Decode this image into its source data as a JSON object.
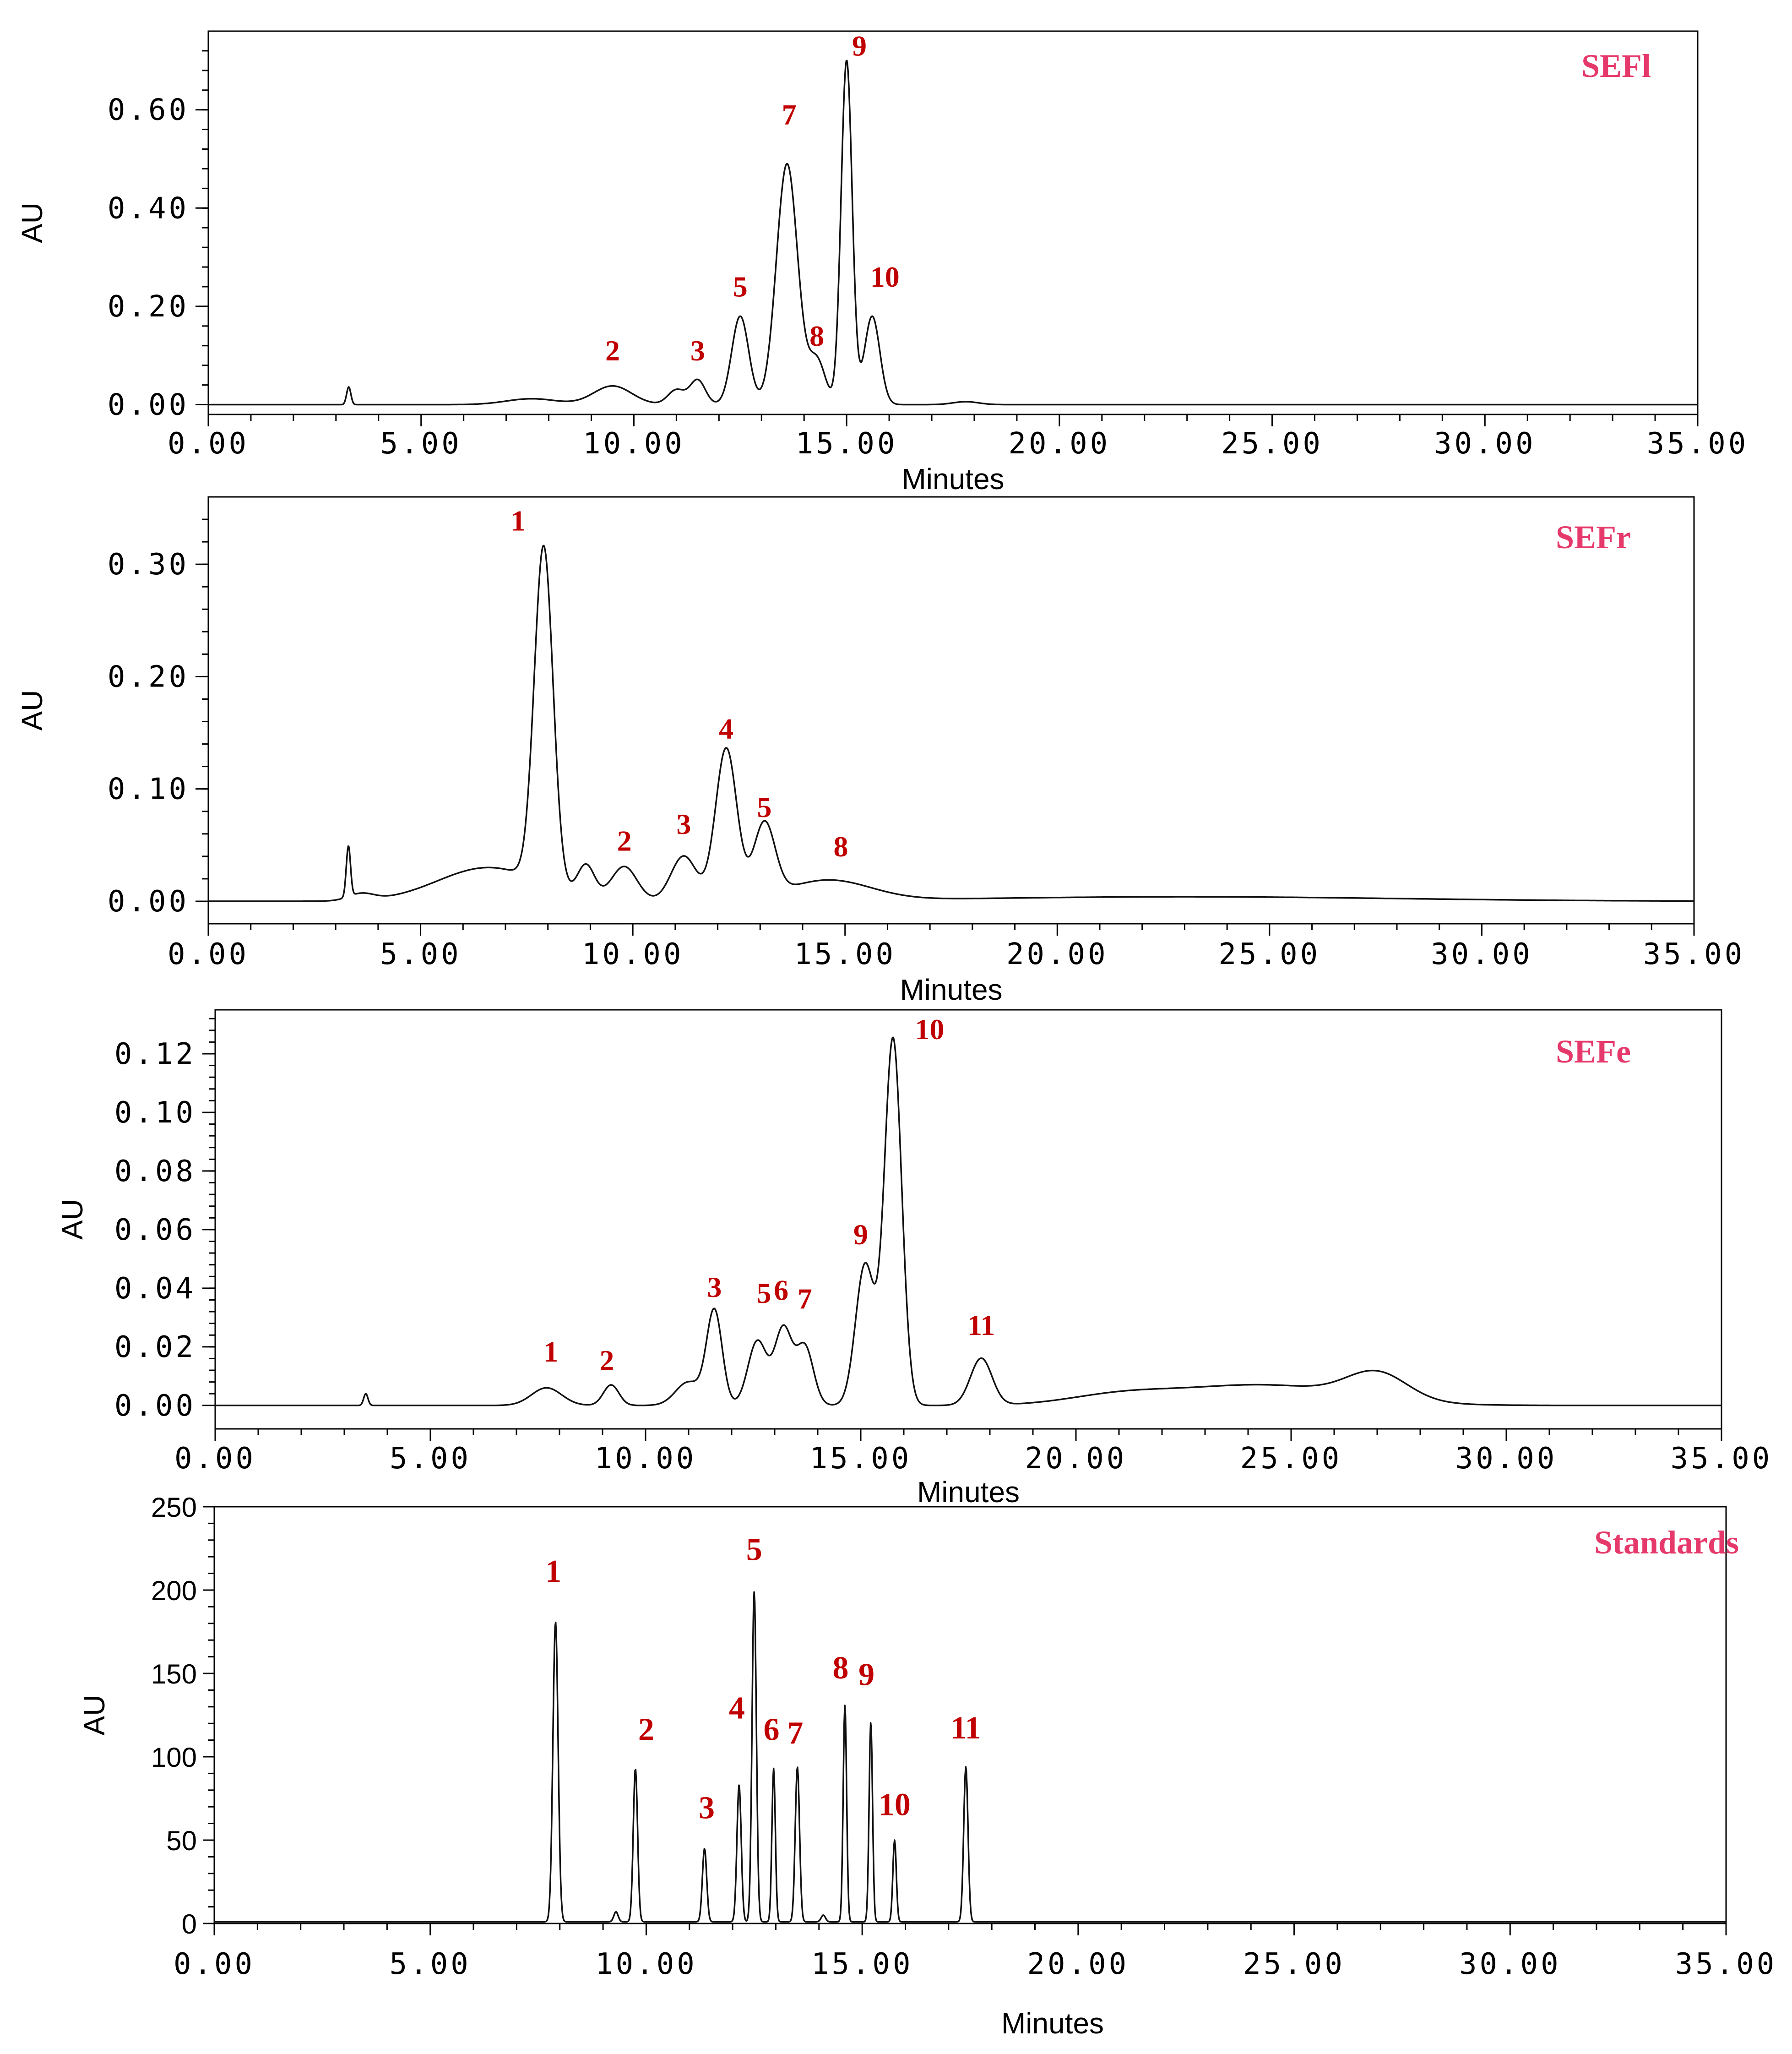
{
  "colors": {
    "title": "#e6396b",
    "peak_label": "#c00000",
    "trace": "#111111"
  },
  "chart_data": [
    {
      "type": "line",
      "title": "SEFl",
      "xlabel": "Minutes",
      "ylabel": "AU",
      "xlim": [
        0,
        35
      ],
      "ylim": [
        -0.02,
        0.76
      ],
      "x_ticks": [
        0,
        5,
        10,
        15,
        20,
        25,
        30,
        35
      ],
      "x_tick_labels": [
        "0.00",
        "5.00",
        "10.00",
        "15.00",
        "20.00",
        "25.00",
        "30.00",
        "35.00"
      ],
      "y_ticks": [
        0,
        0.2,
        0.4,
        0.6
      ],
      "y_tick_labels": [
        "0.00",
        "0.20",
        "0.40",
        "0.60"
      ],
      "baseline": 0.0,
      "peaks": [
        {
          "rt": 3.3,
          "h": 0.036,
          "w": 0.05
        },
        {
          "rt": 7.6,
          "h": 0.012,
          "w": 0.6
        },
        {
          "rt": 9.5,
          "h": 0.038,
          "w": 0.45
        },
        {
          "rt": 11.0,
          "h": 0.03,
          "w": 0.2
        },
        {
          "rt": 11.5,
          "h": 0.05,
          "w": 0.18
        },
        {
          "rt": 12.5,
          "h": 0.18,
          "w": 0.2
        },
        {
          "rt": 13.6,
          "h": 0.49,
          "w": 0.25
        },
        {
          "rt": 14.3,
          "h": 0.09,
          "w": 0.2
        },
        {
          "rt": 15.0,
          "h": 0.7,
          "w": 0.13
        },
        {
          "rt": 15.6,
          "h": 0.18,
          "w": 0.18
        },
        {
          "rt": 17.8,
          "h": 0.006,
          "w": 0.3
        }
      ],
      "peak_labels": [
        {
          "text": "2",
          "x": 9.5,
          "y": 0.09
        },
        {
          "text": "3",
          "x": 11.5,
          "y": 0.09
        },
        {
          "text": "5",
          "x": 12.5,
          "y": 0.22
        },
        {
          "text": "7",
          "x": 13.65,
          "y": 0.57
        },
        {
          "text": "8",
          "x": 14.3,
          "y": 0.12
        },
        {
          "text": "9",
          "x": 15.3,
          "y": 0.71
        },
        {
          "text": "10",
          "x": 15.9,
          "y": 0.24
        }
      ]
    },
    {
      "type": "line",
      "title": "SEFr",
      "xlabel": "Minutes",
      "ylabel": "AU",
      "xlim": [
        0,
        35
      ],
      "ylim": [
        -0.02,
        0.36
      ],
      "x_ticks": [
        0,
        5,
        10,
        15,
        20,
        25,
        30,
        35
      ],
      "x_tick_labels": [
        "0.00",
        "5.00",
        "10.00",
        "15.00",
        "20.00",
        "25.00",
        "30.00",
        "35.00"
      ],
      "y_ticks": [
        0,
        0.1,
        0.2,
        0.3
      ],
      "y_tick_labels": [
        "0.00",
        "0.10",
        "0.20",
        "0.30"
      ],
      "baseline": 0.0,
      "peaks": [
        {
          "rt": 3.3,
          "h": 0.045,
          "w": 0.05
        },
        {
          "rt": 3.6,
          "h": 0.006,
          "w": 0.3
        },
        {
          "rt": 6.6,
          "h": 0.03,
          "w": 1.2
        },
        {
          "rt": 7.9,
          "h": 0.3,
          "w": 0.22
        },
        {
          "rt": 8.9,
          "h": 0.028,
          "w": 0.2
        },
        {
          "rt": 9.8,
          "h": 0.03,
          "w": 0.3
        },
        {
          "rt": 11.2,
          "h": 0.04,
          "w": 0.3
        },
        {
          "rt": 12.2,
          "h": 0.135,
          "w": 0.25
        },
        {
          "rt": 13.1,
          "h": 0.065,
          "w": 0.25
        },
        {
          "rt": 14.6,
          "h": 0.018,
          "w": 1.0
        },
        {
          "rt": 23.0,
          "h": 0.004,
          "w": 5.0
        }
      ],
      "peak_labels": [
        {
          "text": "1",
          "x": 7.3,
          "y": 0.33
        },
        {
          "text": "2",
          "x": 9.8,
          "y": 0.045
        },
        {
          "text": "3",
          "x": 11.2,
          "y": 0.06
        },
        {
          "text": "4",
          "x": 12.2,
          "y": 0.145
        },
        {
          "text": "5",
          "x": 13.1,
          "y": 0.075
        },
        {
          "text": "8",
          "x": 14.9,
          "y": 0.04
        }
      ]
    },
    {
      "type": "line",
      "title": "SEFe",
      "xlabel": "Minutes",
      "ylabel": "AU",
      "xlim": [
        0,
        35
      ],
      "ylim": [
        -0.008,
        0.135
      ],
      "x_ticks": [
        0,
        5,
        10,
        15,
        20,
        25,
        30,
        35
      ],
      "x_tick_labels": [
        "0.00",
        "5.00",
        "10.00",
        "15.00",
        "20.00",
        "25.00",
        "30.00",
        "35.00"
      ],
      "y_ticks": [
        0,
        0.02,
        0.04,
        0.06,
        0.08,
        0.1,
        0.12
      ],
      "y_tick_labels": [
        "0.00",
        "0.02",
        "0.04",
        "0.06",
        "0.08",
        "0.10",
        "0.12"
      ],
      "baseline": 0.0,
      "peaks": [
        {
          "rt": 3.5,
          "h": 0.004,
          "w": 0.05
        },
        {
          "rt": 7.7,
          "h": 0.006,
          "w": 0.35
        },
        {
          "rt": 9.2,
          "h": 0.007,
          "w": 0.18
        },
        {
          "rt": 11.0,
          "h": 0.008,
          "w": 0.3
        },
        {
          "rt": 11.6,
          "h": 0.032,
          "w": 0.18
        },
        {
          "rt": 12.6,
          "h": 0.022,
          "w": 0.22
        },
        {
          "rt": 13.2,
          "h": 0.026,
          "w": 0.2
        },
        {
          "rt": 13.7,
          "h": 0.02,
          "w": 0.2
        },
        {
          "rt": 15.1,
          "h": 0.048,
          "w": 0.22
        },
        {
          "rt": 15.75,
          "h": 0.125,
          "w": 0.2
        },
        {
          "rt": 17.8,
          "h": 0.016,
          "w": 0.25
        },
        {
          "rt": 21.0,
          "h": 0.003,
          "w": 1.2
        },
        {
          "rt": 24.3,
          "h": 0.007,
          "w": 2.0
        },
        {
          "rt": 27.0,
          "h": 0.009,
          "w": 0.7
        }
      ],
      "peak_labels": [
        {
          "text": "1",
          "x": 7.8,
          "y": 0.015
        },
        {
          "text": "2",
          "x": 9.1,
          "y": 0.012
        },
        {
          "text": "3",
          "x": 11.6,
          "y": 0.037
        },
        {
          "text": "5",
          "x": 12.75,
          "y": 0.035
        },
        {
          "text": "6",
          "x": 13.15,
          "y": 0.036
        },
        {
          "text": "7",
          "x": 13.7,
          "y": 0.033
        },
        {
          "text": "9",
          "x": 15.0,
          "y": 0.055
        },
        {
          "text": "10",
          "x": 16.6,
          "y": 0.125
        },
        {
          "text": "11",
          "x": 17.8,
          "y": 0.024
        }
      ]
    },
    {
      "type": "line",
      "title": "Standards",
      "xlabel": "Minutes",
      "ylabel": "AU",
      "xlim": [
        0,
        35
      ],
      "ylim": [
        0,
        250
      ],
      "x_ticks": [
        0,
        5,
        10,
        15,
        20,
        25,
        30,
        35
      ],
      "x_tick_labels": [
        "0.00",
        "5.00",
        "10.00",
        "15.00",
        "20.00",
        "25.00",
        "30.00",
        "35.00"
      ],
      "y_ticks": [
        0,
        50,
        100,
        150,
        200,
        250
      ],
      "y_tick_labels": [
        "0",
        "50",
        "100",
        "150",
        "200",
        "250"
      ],
      "baseline": 1.0,
      "peaks": [
        {
          "rt": 7.9,
          "h": 180,
          "w": 0.06
        },
        {
          "rt": 9.3,
          "h": 6,
          "w": 0.05
        },
        {
          "rt": 9.75,
          "h": 92,
          "w": 0.05
        },
        {
          "rt": 11.35,
          "h": 44,
          "w": 0.05
        },
        {
          "rt": 12.15,
          "h": 82,
          "w": 0.05
        },
        {
          "rt": 12.5,
          "h": 198,
          "w": 0.05
        },
        {
          "rt": 12.95,
          "h": 92,
          "w": 0.04
        },
        {
          "rt": 13.5,
          "h": 93,
          "w": 0.05
        },
        {
          "rt": 14.1,
          "h": 4,
          "w": 0.05
        },
        {
          "rt": 14.6,
          "h": 130,
          "w": 0.04
        },
        {
          "rt": 15.2,
          "h": 120,
          "w": 0.04
        },
        {
          "rt": 15.75,
          "h": 49,
          "w": 0.04
        },
        {
          "rt": 17.4,
          "h": 93,
          "w": 0.05
        }
      ],
      "peak_labels": [
        {
          "text": "1",
          "x": 7.85,
          "y": 205
        },
        {
          "text": "2",
          "x": 10.0,
          "y": 110
        },
        {
          "text": "3",
          "x": 11.4,
          "y": 63
        },
        {
          "text": "4",
          "x": 12.1,
          "y": 123
        },
        {
          "text": "5",
          "x": 12.5,
          "y": 218
        },
        {
          "text": "6",
          "x": 12.9,
          "y": 110
        },
        {
          "text": "7",
          "x": 13.45,
          "y": 108
        },
        {
          "text": "8",
          "x": 14.5,
          "y": 147
        },
        {
          "text": "9",
          "x": 15.1,
          "y": 143
        },
        {
          "text": "10",
          "x": 15.75,
          "y": 65
        },
        {
          "text": "11",
          "x": 17.4,
          "y": 111
        }
      ]
    }
  ]
}
